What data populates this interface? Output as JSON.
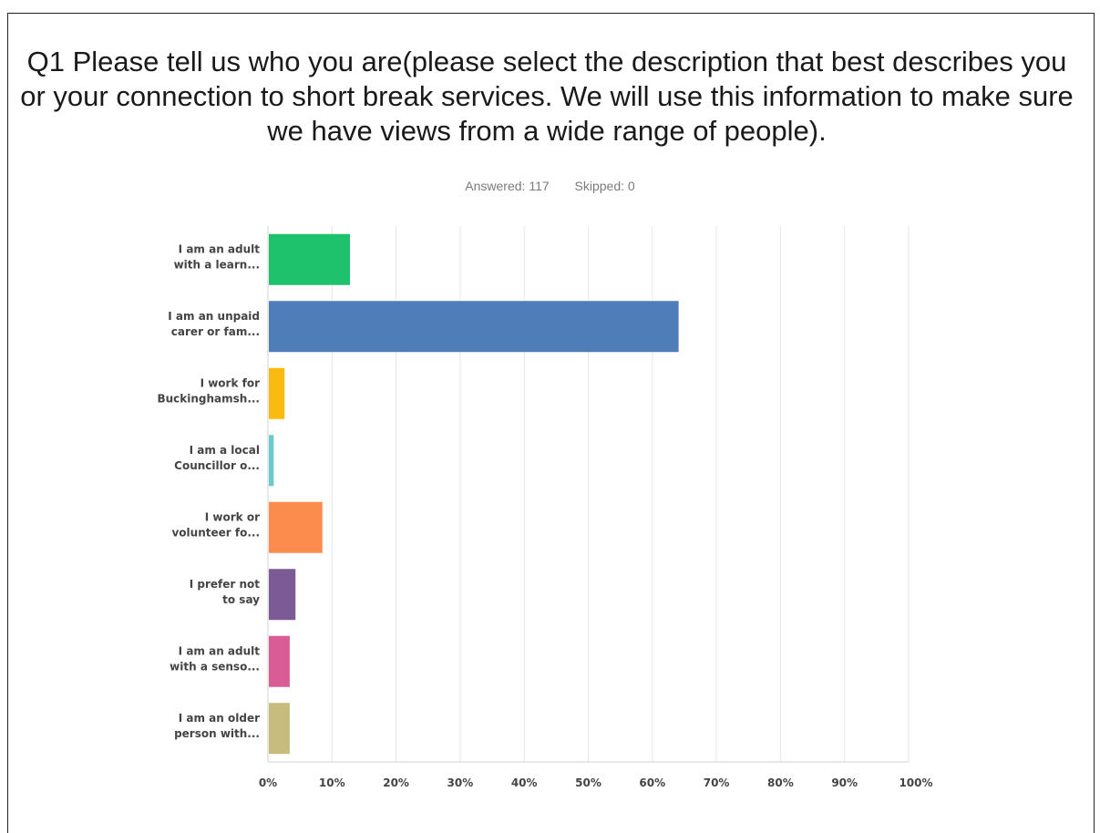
{
  "title": "Q1 Please tell us who you are(please select the description that best describes you or your connection to short break services. We will use this information to make sure we have views from a wide range of people).",
  "answered": "Answered: 117",
  "skipped": "Skipped: 0",
  "chart_data": {
    "type": "bar",
    "orientation": "horizontal",
    "categories": [
      [
        "I am an adult",
        "with a learn..."
      ],
      [
        "I am an unpaid",
        "carer or fam..."
      ],
      [
        "I work for",
        "Buckinghamsh..."
      ],
      [
        "I am a local",
        "Councillor o..."
      ],
      [
        "I work or",
        "volunteer fo..."
      ],
      [
        "I prefer not",
        "to say"
      ],
      [
        "I am an adult",
        "with a senso..."
      ],
      [
        "I am an older",
        "person with..."
      ]
    ],
    "values": [
      12.8,
      64.1,
      2.6,
      0.9,
      8.5,
      4.3,
      3.4,
      3.4
    ],
    "colors": [
      "#1ec26d",
      "#4f7db8",
      "#f9bb11",
      "#67cbd0",
      "#fb8c4d",
      "#7c5a96",
      "#d95c96",
      "#c8bb7e"
    ],
    "xlim": [
      0,
      100
    ],
    "xticks": [
      "0%",
      "10%",
      "20%",
      "30%",
      "40%",
      "50%",
      "60%",
      "70%",
      "80%",
      "90%",
      "100%"
    ],
    "grid": true
  }
}
